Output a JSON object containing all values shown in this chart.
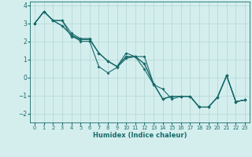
{
  "xlabel": "Humidex (Indice chaleur)",
  "background_color": "#d4eeee",
  "grid_color": "#b8d8d8",
  "line_color": "#1a6b6b",
  "xlim": [
    -0.5,
    23.5
  ],
  "ylim": [
    -2.5,
    4.2
  ],
  "xticks": [
    0,
    1,
    2,
    3,
    4,
    5,
    6,
    7,
    8,
    9,
    10,
    11,
    12,
    13,
    14,
    15,
    16,
    17,
    18,
    19,
    20,
    21,
    22,
    23
  ],
  "yticks": [
    -2,
    -1,
    0,
    1,
    2,
    3,
    4
  ],
  "series": [
    [
      3.0,
      3.65,
      3.15,
      2.85,
      2.35,
      2.0,
      2.0,
      0.6,
      0.25,
      0.55,
      1.05,
      1.15,
      0.45,
      -0.4,
      -0.65,
      -1.2,
      -1.05,
      -1.05,
      -1.65,
      -1.65,
      -1.1,
      0.1,
      -1.35,
      -1.25
    ],
    [
      3.0,
      3.65,
      3.15,
      2.85,
      2.35,
      2.1,
      2.1,
      1.35,
      0.9,
      0.6,
      1.35,
      1.15,
      1.15,
      -0.35,
      -1.2,
      -1.05,
      -1.05,
      -1.05,
      -1.65,
      -1.65,
      -1.1,
      0.1,
      -1.35,
      -1.25
    ],
    [
      3.0,
      3.65,
      3.15,
      3.15,
      2.25,
      2.1,
      2.1,
      1.35,
      0.9,
      0.6,
      1.15,
      1.15,
      0.75,
      -0.35,
      -1.2,
      -1.05,
      -1.05,
      -1.05,
      -1.65,
      -1.65,
      -1.1,
      0.1,
      -1.35,
      -1.25
    ],
    [
      3.0,
      3.65,
      3.15,
      3.15,
      2.45,
      2.15,
      2.15,
      1.35,
      0.9,
      0.6,
      1.15,
      1.15,
      0.75,
      -0.35,
      -1.2,
      -1.05,
      -1.05,
      -1.05,
      -1.65,
      -1.65,
      -1.1,
      0.1,
      -1.35,
      -1.25
    ]
  ]
}
